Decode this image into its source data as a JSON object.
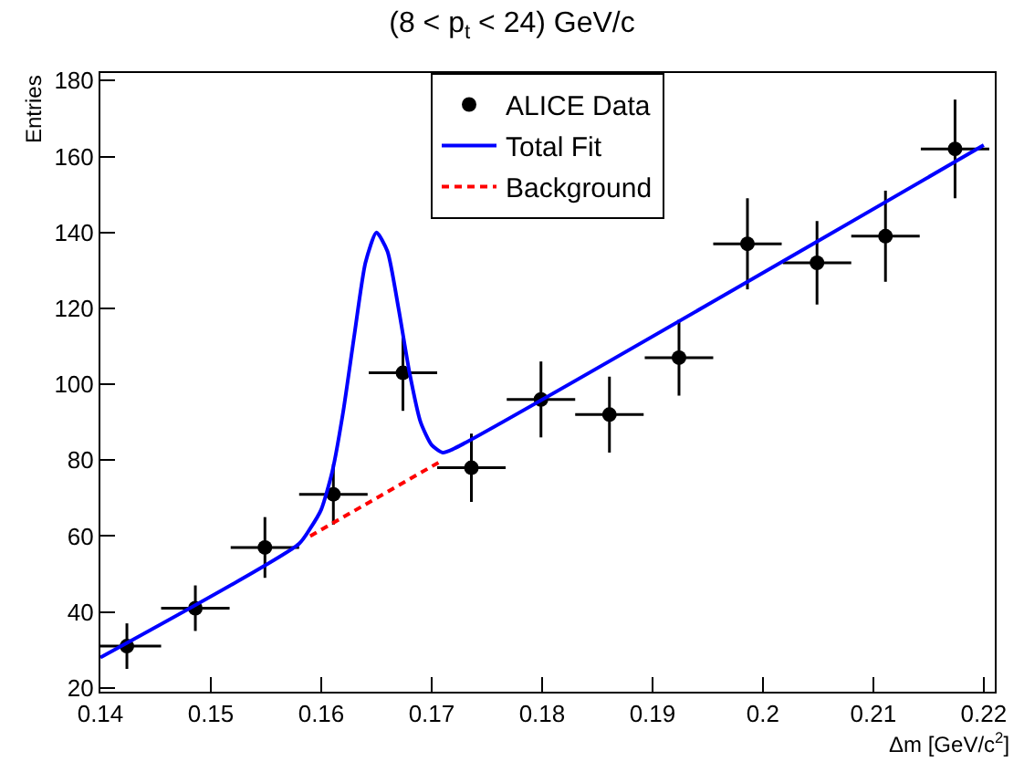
{
  "chart_data": {
    "type": "scatter",
    "title": "(8 < p$_{t}$ < 24) GeV/c",
    "xlabel": "Δm [GeV/c$^{2}$]",
    "ylabel": "Entries",
    "xlim": [
      0.14,
      0.221
    ],
    "xticks": [
      0.14,
      0.15,
      0.16,
      0.17,
      0.18,
      0.19,
      {
        "value": 0.2,
        "label": "0.2"
      },
      0.21,
      0.22
    ],
    "ylim": [
      19,
      182
    ],
    "yticks": [
      20,
      40,
      60,
      80,
      100,
      120,
      140,
      160,
      180
    ],
    "grid": false,
    "legend": "top",
    "series": [
      {
        "name": "ALICE Data",
        "marker": "circle",
        "color": "#000000",
        "x": [
          0.1424,
          0.1486,
          0.1549,
          0.1611,
          0.1674,
          0.1736,
          0.1799,
          0.1861,
          0.1924,
          0.1986,
          0.2049,
          0.2111,
          0.2174
        ],
        "values": [
          31,
          41,
          57,
          71,
          103,
          78,
          96,
          92,
          107,
          137,
          132,
          139,
          162
        ],
        "errors": [
          6,
          6,
          8,
          8,
          10,
          9,
          10,
          10,
          10,
          12,
          11,
          12,
          13
        ],
        "xerrors": [
          0.0031,
          0.0031,
          0.0031,
          0.0031,
          0.0031,
          0.0031,
          0.0031,
          0.0031,
          0.0031,
          0.0031,
          0.0031,
          0.0031,
          0.0031
        ]
      },
      {
        "name": "Total Fit",
        "type": "line",
        "color": "#0000ff",
        "line_style": "solid",
        "x": [
          0.14,
          0.158,
          0.159,
          0.16,
          0.161,
          0.162,
          0.163,
          0.164,
          0.165,
          0.166,
          0.167,
          0.168,
          0.169,
          0.17,
          0.171,
          0.172,
          0.22
        ],
        "values": [
          28,
          58,
          62,
          67,
          77,
          93,
          113,
          132,
          140,
          135,
          120,
          103,
          90,
          84,
          82,
          83,
          163
        ]
      },
      {
        "name": "Background",
        "type": "line",
        "color": "#ff0000",
        "line_style": "dashed",
        "x": [
          0.159,
          0.171
        ],
        "values": [
          60,
          80
        ]
      }
    ]
  }
}
